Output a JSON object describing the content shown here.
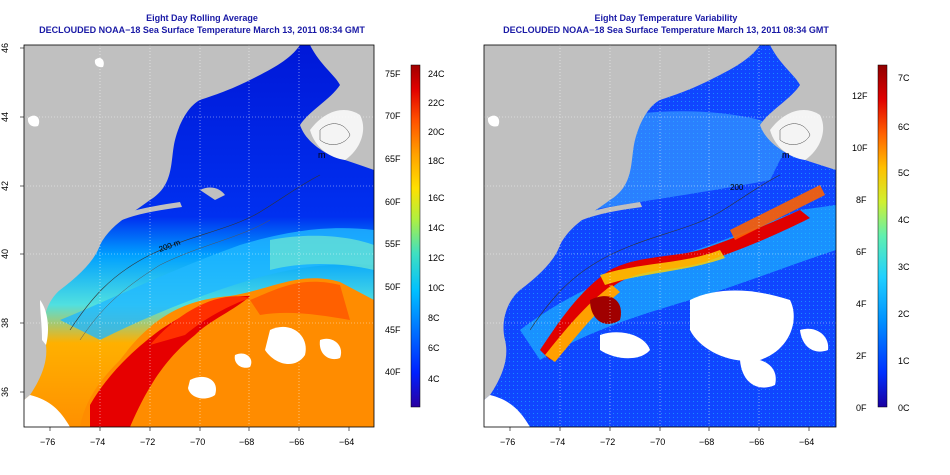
{
  "left_panel": {
    "title": "Eight Day Rolling Average",
    "subtitle": "DECLOUDED NOAA−18 Sea Surface Temperature March 13, 2011 08:34 GMT",
    "lat_ticks": [
      "46",
      "44",
      "42",
      "40",
      "38",
      "36"
    ],
    "lon_ticks": [
      "−76",
      "−74",
      "−72",
      "−70",
      "−68",
      "−66",
      "−64"
    ],
    "colorbar_f": [
      "75F",
      "70F",
      "65F",
      "60F",
      "55F",
      "50F",
      "45F",
      "40F"
    ],
    "colorbar_c": [
      "24C",
      "22C",
      "20C",
      "18C",
      "16C",
      "14C",
      "12C",
      "10C",
      "8C",
      "6C",
      "4C"
    ],
    "contour_labels": [
      "200 m",
      "m"
    ]
  },
  "right_panel": {
    "title": "Eight Day Temperature Variability",
    "subtitle": "DECLOUDED NOAA−18 Sea Surface Temperature March 13, 2011 08:34 GMT",
    "lon_ticks": [
      "−76",
      "−74",
      "−72",
      "−70",
      "−68",
      "−66",
      "−64"
    ],
    "colorbar_f": [
      "12F",
      "10F",
      "8F",
      "6F",
      "4F",
      "2F",
      "0F"
    ],
    "colorbar_c": [
      "7C",
      "6C",
      "5C",
      "4C",
      "3C",
      "2C",
      "1C",
      "0C"
    ],
    "contour_labels": [
      "200",
      "m"
    ]
  },
  "colors": {
    "land": "#c0c0c0",
    "title": "#1a1aa6",
    "sst_scale": [
      "#2a00a0",
      "#0020ff",
      "#0070ff",
      "#00c0ff",
      "#40e0c0",
      "#b0f040",
      "#ffe000",
      "#ffa000",
      "#ff5000",
      "#e00000",
      "#a00000"
    ],
    "var_scale": [
      "#1a00a0",
      "#0030ff",
      "#0090ff",
      "#20d0ff",
      "#60f0b0",
      "#d0f030",
      "#ffc000",
      "#ff6000",
      "#e00000",
      "#900000"
    ]
  }
}
